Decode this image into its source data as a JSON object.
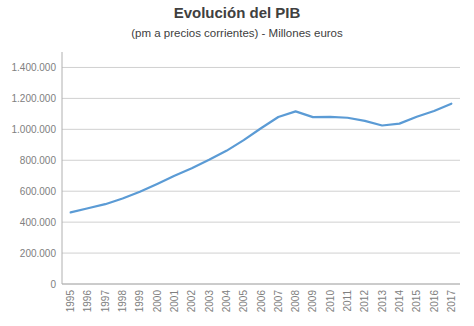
{
  "chart_data": {
    "type": "line",
    "title": "Evolución del PIB",
    "subtitle": "(pm a precios corrientes) - Millones euros",
    "x": [
      1995,
      1996,
      1997,
      1998,
      1999,
      2000,
      2001,
      2002,
      2003,
      2004,
      2005,
      2006,
      2007,
      2008,
      2009,
      2010,
      2011,
      2012,
      2013,
      2014,
      2015,
      2016,
      2017
    ],
    "values": [
      463000,
      490000,
      516000,
      553000,
      596000,
      647000,
      700000,
      749000,
      803000,
      861000,
      930000,
      1007000,
      1080000,
      1116000,
      1079000,
      1080000,
      1075000,
      1055000,
      1025000,
      1037000,
      1081000,
      1118000,
      1166000
    ],
    "color": "#5B9BD5",
    "xlim": [
      1994.5,
      2017.5
    ],
    "xticks": [
      1995,
      1996,
      1997,
      1998,
      1999,
      2000,
      2001,
      2002,
      2003,
      2004,
      2005,
      2006,
      2007,
      2008,
      2009,
      2010,
      2011,
      2012,
      2013,
      2014,
      2015,
      2016,
      2017
    ],
    "ylim": [
      0,
      1500000
    ],
    "yticks": [
      0,
      {
        "value": 200000,
        "label": "200.000"
      },
      {
        "value": 400000,
        "label": "400.000"
      },
      {
        "value": 600000,
        "label": "600.000"
      },
      {
        "value": 800000,
        "label": "800.000"
      },
      {
        "value": 1000000,
        "label": "1.000.000"
      },
      {
        "value": 1200000,
        "label": "1.200.000"
      },
      {
        "value": 1400000,
        "label": "1.400.000"
      }
    ],
    "grid": true
  }
}
